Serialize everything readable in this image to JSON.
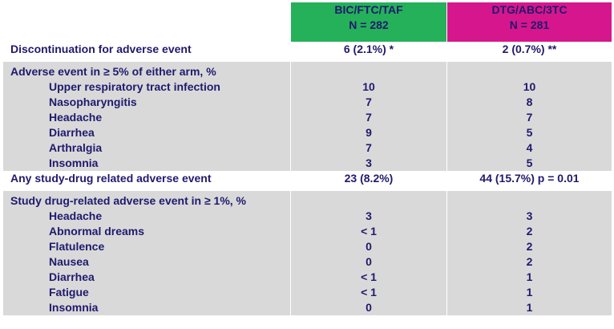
{
  "columns": {
    "arm1": {
      "name": "BIC/FTC/TAF",
      "n": "N = 282"
    },
    "arm2": {
      "name": "DTG/ABC/3TC",
      "n": "N = 281"
    }
  },
  "rows": {
    "discontinuation": {
      "label": "Discontinuation for adverse event",
      "arm1": "6 (2.1%) *",
      "arm2": "2 (0.7%) **"
    },
    "ae5": {
      "title": "Adverse event in ≥ 5% of either arm, %",
      "items": [
        {
          "label": "Upper respiratory tract infection",
          "arm1": "10",
          "arm2": "10"
        },
        {
          "label": "Nasopharyngitis",
          "arm1": "7",
          "arm2": "8"
        },
        {
          "label": "Headache",
          "arm1": "7",
          "arm2": "7"
        },
        {
          "label": "Diarrhea",
          "arm1": "9",
          "arm2": "5"
        },
        {
          "label": "Arthralgia",
          "arm1": "7",
          "arm2": "4"
        },
        {
          "label": "Insomnia",
          "arm1": "3",
          "arm2": "5"
        }
      ]
    },
    "related": {
      "label": "Any study-drug related adverse event",
      "arm1": "23 (8.2%)",
      "arm2": "44 (15.7%) p = 0.01"
    },
    "related1": {
      "title": "Study drug-related adverse event in ≥ 1%, %",
      "items": [
        {
          "label": "Headache",
          "arm1": "3",
          "arm2": "3"
        },
        {
          "label": "Abnormal dreams",
          "arm1": "< 1",
          "arm2": "2"
        },
        {
          "label": "Flatulence",
          "arm1": "0",
          "arm2": "2"
        },
        {
          "label": "Nausea",
          "arm1": "0",
          "arm2": "2"
        },
        {
          "label": "Diarrhea",
          "arm1": "< 1",
          "arm2": "1"
        },
        {
          "label": "Fatigue",
          "arm1": "< 1",
          "arm2": "1"
        },
        {
          "label": "Insomnia",
          "arm1": "0",
          "arm2": "1"
        }
      ]
    }
  },
  "colors": {
    "arm1_header": "#25b05a",
    "arm2_header": "#d6168c",
    "text": "#1f1a6e",
    "row_grey": "#d9d9d9"
  }
}
